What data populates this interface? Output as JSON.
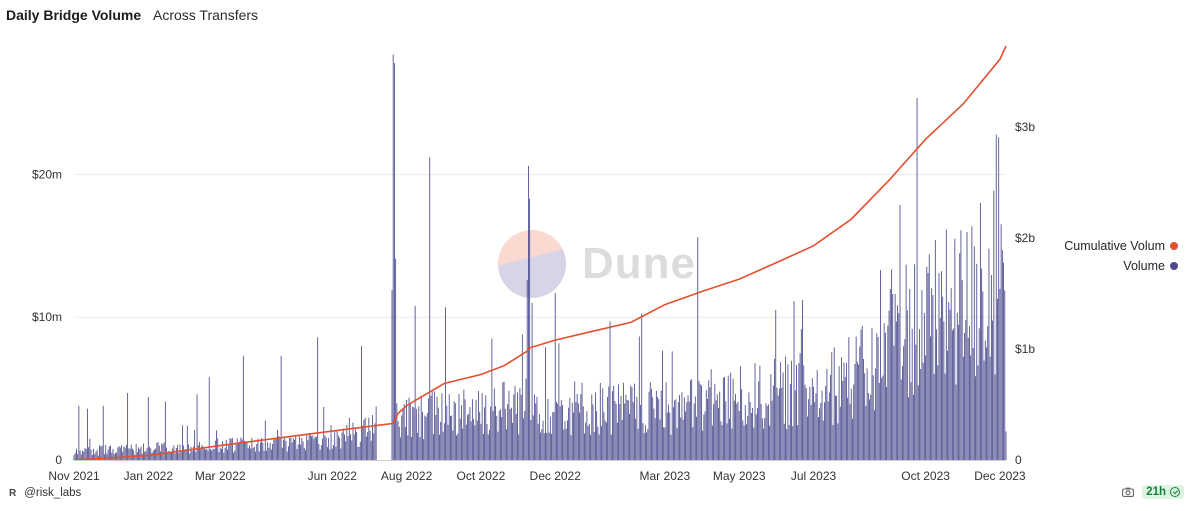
{
  "header": {
    "title": "Daily Bridge Volume",
    "subtitle": "Across Transfers"
  },
  "watermark": {
    "text": "Dune"
  },
  "footer": {
    "author": "@risk_labs",
    "refresh_badge": "21h",
    "logo_mark": "R"
  },
  "legend": [
    {
      "label": "Cumulative Volum",
      "color": "#e4502e"
    },
    {
      "label": "Volume",
      "color": "#4a4a8e"
    }
  ],
  "chart_data": {
    "type": "bar+line",
    "title": "Daily Bridge Volume",
    "subtitle": "Across Transfers",
    "x_axis": {
      "type": "date",
      "range": [
        "2021-11-01",
        "2023-12-06"
      ],
      "tick_labels": [
        "Nov 2021",
        "Jan 2022",
        "Mar 2022",
        "Jun 2022",
        "Aug 2022",
        "Oct 2022",
        "Dec 2022",
        "Mar 2023",
        "May 2023",
        "Jul 2023",
        "Oct 2023",
        "Dec 2023"
      ],
      "tick_dates": [
        "2021-11-01",
        "2022-01-01",
        "2022-03-01",
        "2022-06-01",
        "2022-08-01",
        "2022-10-01",
        "2022-12-01",
        "2023-03-01",
        "2023-05-01",
        "2023-07-01",
        "2023-10-01",
        "2023-12-01"
      ]
    },
    "y_left": {
      "label": "",
      "unit": "USD",
      "ylim": [
        0,
        29000000
      ],
      "tick_values": [
        0,
        10000000,
        20000000
      ],
      "tick_labels": [
        "0",
        "$10m",
        "$20m"
      ]
    },
    "y_right": {
      "label": "",
      "unit": "USD",
      "ylim": [
        0,
        3730000000
      ],
      "tick_values": [
        0,
        1000000000,
        2000000000,
        3000000000
      ],
      "tick_labels": [
        "0",
        "$1b",
        "$2b",
        "$3b"
      ]
    },
    "grid": true,
    "legend_position": "right",
    "series": [
      {
        "name": "Volume",
        "type": "bar",
        "axis": "left",
        "color": "#4a4a8e",
        "granularity": "daily",
        "notable_points": [
          {
            "x": "2021-11-05",
            "y": 3800000
          },
          {
            "x": "2021-11-12",
            "y": 3600000
          },
          {
            "x": "2021-11-25",
            "y": 3800000
          },
          {
            "x": "2021-12-15",
            "y": 4700000
          },
          {
            "x": "2022-01-01",
            "y": 4400000
          },
          {
            "x": "2022-01-15",
            "y": 4100000
          },
          {
            "x": "2022-02-10",
            "y": 4600000
          },
          {
            "x": "2022-02-20",
            "y": 5800000
          },
          {
            "x": "2022-03-20",
            "y": 7300000
          },
          {
            "x": "2022-04-20",
            "y": 7300000
          },
          {
            "x": "2022-05-20",
            "y": 8600000
          },
          {
            "x": "2022-06-25",
            "y": 8000000
          },
          {
            "x": "2022-07-20",
            "y": 11900000
          },
          {
            "x": "2022-07-21",
            "y": 28400000
          },
          {
            "x": "2022-07-22",
            "y": 27800000
          },
          {
            "x": "2022-07-23",
            "y": 14100000
          },
          {
            "x": "2022-08-08",
            "y": 10800000
          },
          {
            "x": "2022-08-20",
            "y": 21200000
          },
          {
            "x": "2022-09-02",
            "y": 10700000
          },
          {
            "x": "2022-10-10",
            "y": 8500000
          },
          {
            "x": "2022-11-04",
            "y": 8800000
          },
          {
            "x": "2022-11-08",
            "y": 12600000
          },
          {
            "x": "2022-11-09",
            "y": 20600000
          },
          {
            "x": "2022-11-10",
            "y": 18300000
          },
          {
            "x": "2022-11-12",
            "y": 11000000
          },
          {
            "x": "2022-12-01",
            "y": 11700000
          },
          {
            "x": "2023-03-28",
            "y": 15600000
          },
          {
            "x": "2023-08-25",
            "y": 13300000
          },
          {
            "x": "2023-10-25",
            "y": 15500000
          },
          {
            "x": "2023-11-15",
            "y": 18000000
          },
          {
            "x": "2023-11-28",
            "y": 22800000
          },
          {
            "x": "2023-11-30",
            "y": 22600000
          },
          {
            "x": "2023-12-03",
            "y": 14700000
          },
          {
            "x": "2023-12-06",
            "y": 2000000
          }
        ]
      },
      {
        "name": "Cumulative Volum",
        "type": "line",
        "axis": "right",
        "color": "#e4502e",
        "x": [
          "2021-11-01",
          "2022-01-01",
          "2022-03-01",
          "2022-06-01",
          "2022-07-21",
          "2022-07-25",
          "2022-08-01",
          "2022-09-01",
          "2022-10-01",
          "2022-10-20",
          "2022-11-08",
          "2022-11-10",
          "2022-12-01",
          "2023-01-01",
          "2023-02-01",
          "2023-03-01",
          "2023-04-01",
          "2023-05-01",
          "2023-06-01",
          "2023-07-01",
          "2023-08-01",
          "2023-09-01",
          "2023-10-01",
          "2023-11-01",
          "2023-12-01",
          "2023-12-06"
        ],
        "y": [
          0,
          40000000,
          130000000,
          260000000,
          330000000,
          420000000,
          490000000,
          690000000,
          770000000,
          850000000,
          980000000,
          1010000000,
          1080000000,
          1160000000,
          1240000000,
          1400000000,
          1520000000,
          1630000000,
          1780000000,
          1930000000,
          2170000000,
          2520000000,
          2890000000,
          3210000000,
          3610000000,
          3730000000
        ]
      }
    ]
  }
}
